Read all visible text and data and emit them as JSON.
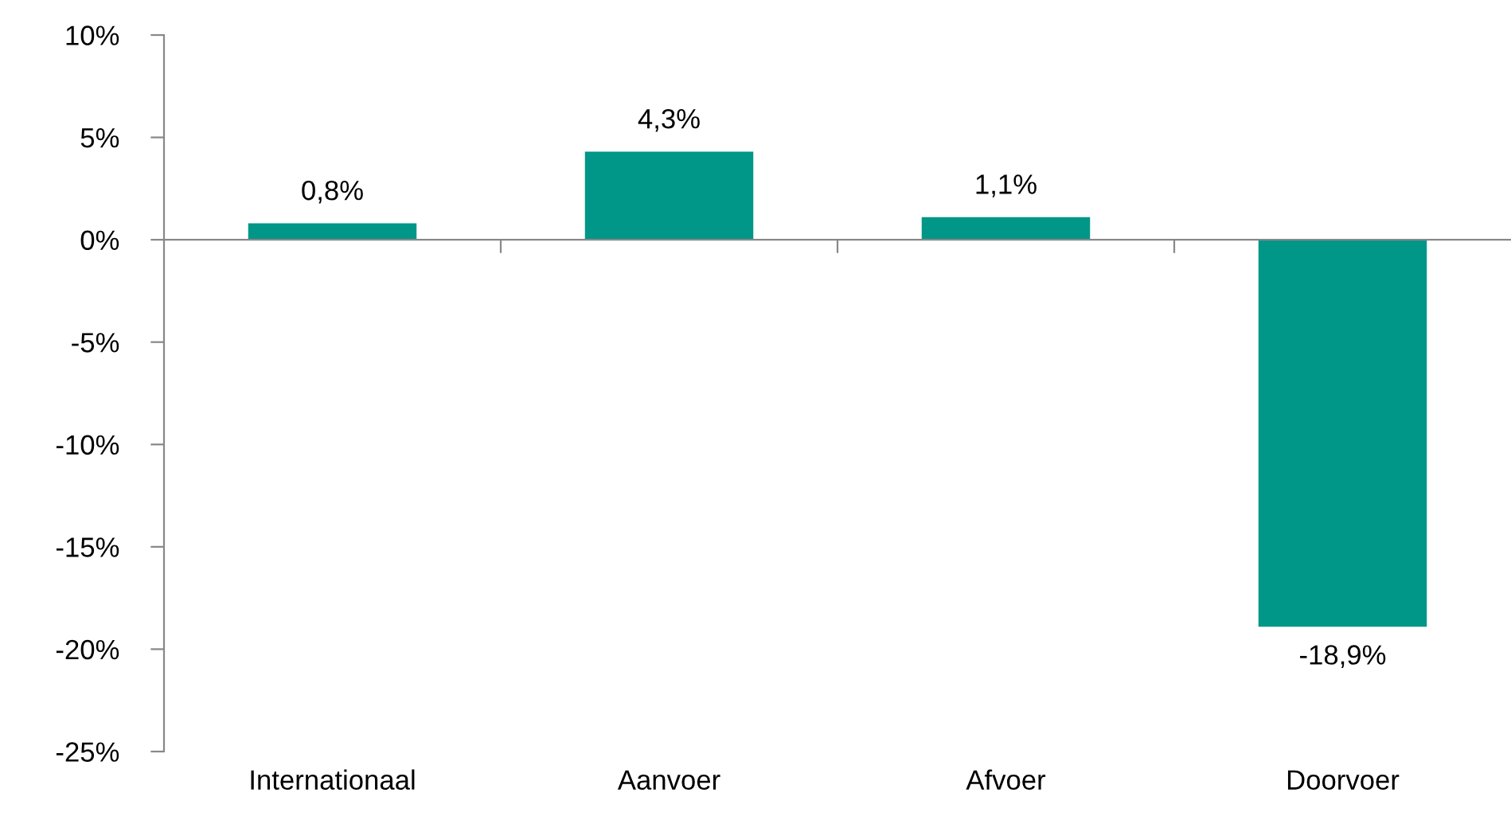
{
  "chart_data": {
    "type": "bar",
    "categories": [
      "Internationaal",
      "Aanvoer",
      "Afvoer",
      "Doorvoer"
    ],
    "values": [
      0.8,
      4.3,
      1.1,
      -18.9
    ],
    "color": "#009688",
    "value_labels": [
      "0,8%",
      "4,3%",
      "1,1%",
      "-18,9%"
    ],
    "ylim": [
      -25,
      10
    ],
    "yticks": [
      {
        "value": -25,
        "label": "-25%"
      },
      {
        "value": -20,
        "label": "-20%"
      },
      {
        "value": -15,
        "label": "-15%"
      },
      {
        "value": -10,
        "label": "-10%"
      },
      {
        "value": -5,
        "label": "-5%"
      },
      {
        "value": 0,
        "label": "0%"
      },
      {
        "value": 5,
        "label": "5%"
      },
      {
        "value": 10,
        "label": "10%"
      }
    ],
    "orientation": "vertical"
  }
}
